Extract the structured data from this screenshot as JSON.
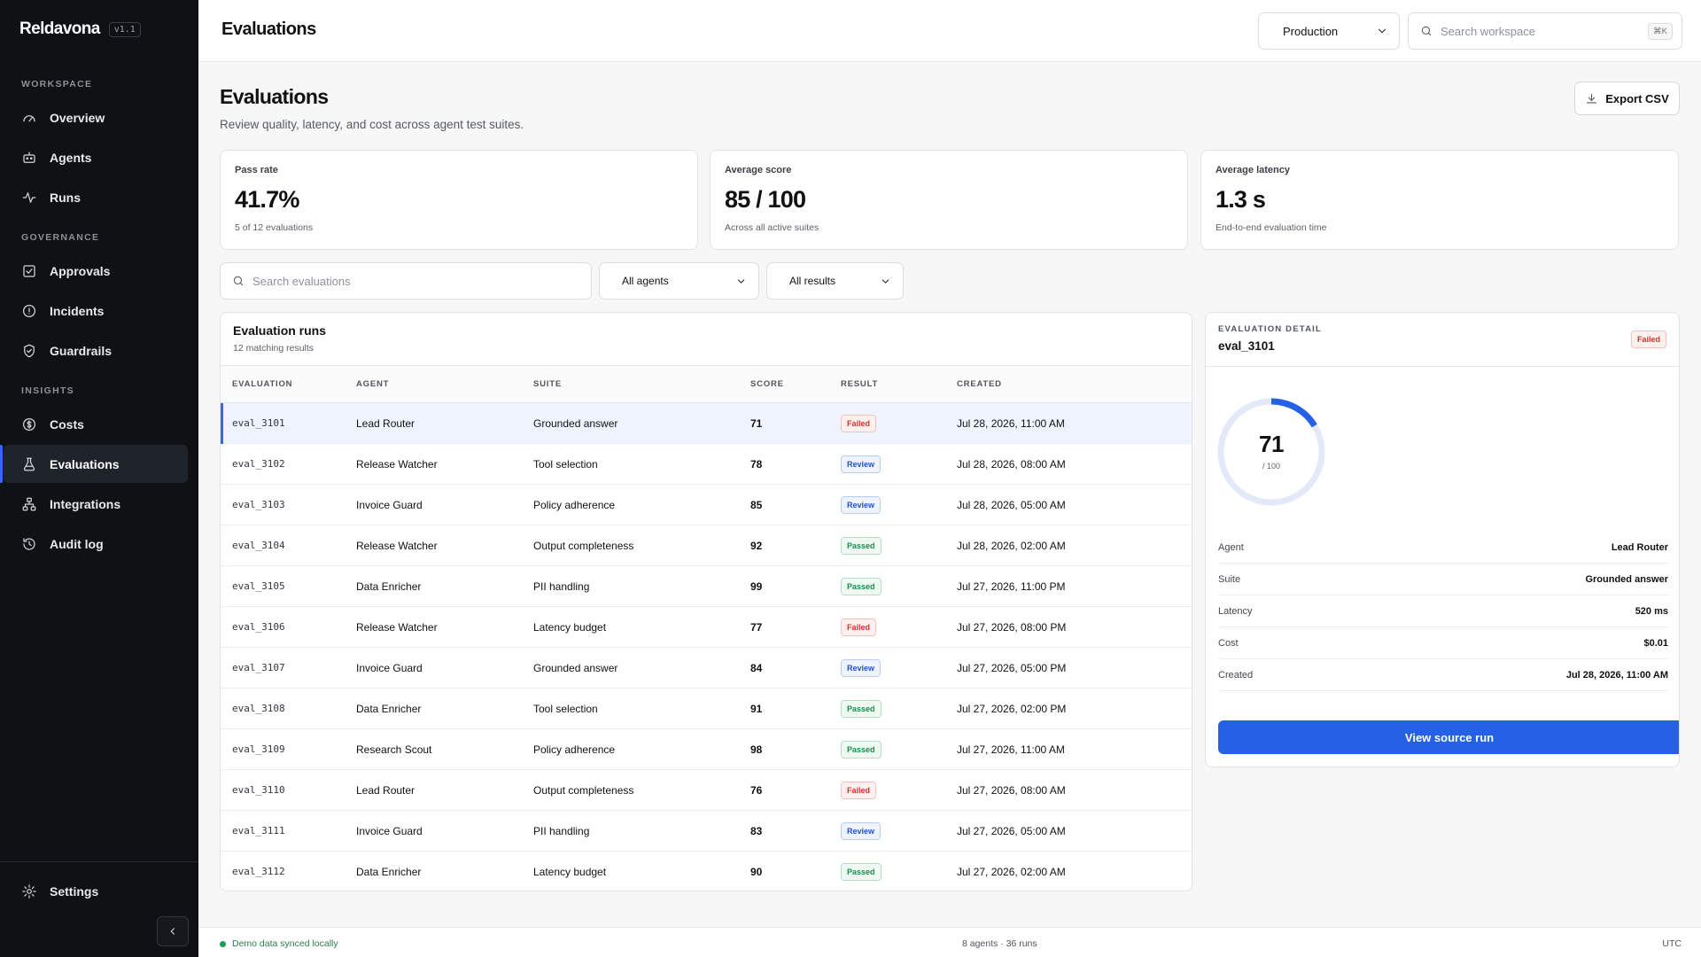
{
  "app": {
    "brand": "Reldavona",
    "version": "v1.1"
  },
  "sidebar": {
    "sections": [
      "WORKSPACE",
      "GOVERNANCE",
      "INSIGHTS"
    ],
    "items": [
      {
        "label": "Overview",
        "icon": "gauge-icon"
      },
      {
        "label": "Agents",
        "icon": "robot-icon"
      },
      {
        "label": "Runs",
        "icon": "activity-icon"
      },
      {
        "label": "Approvals",
        "icon": "check-square-icon"
      },
      {
        "label": "Incidents",
        "icon": "alert-circle-icon"
      },
      {
        "label": "Guardrails",
        "icon": "shield-check-icon"
      },
      {
        "label": "Costs",
        "icon": "dollar-circle-icon"
      },
      {
        "label": "Evaluations",
        "icon": "flask-icon",
        "active": true
      },
      {
        "label": "Integrations",
        "icon": "network-icon"
      },
      {
        "label": "Audit log",
        "icon": "history-icon"
      }
    ],
    "settings": "Settings"
  },
  "topbar": {
    "title": "Evaluations",
    "environment": "Production",
    "search_placeholder": "Search workspace",
    "shortcut": "⌘K"
  },
  "header": {
    "title": "Evaluations",
    "subtitle": "Review quality, latency, and cost across agent test suites.",
    "export_label": "Export CSV"
  },
  "stats": [
    {
      "label": "Pass rate",
      "value": "41.7%",
      "note": "5 of 12 evaluations"
    },
    {
      "label": "Average score",
      "value": "85 / 100",
      "note": "Across all active suites"
    },
    {
      "label": "Average latency",
      "value": "1.3 s",
      "note": "End-to-end evaluation time"
    }
  ],
  "filters": {
    "search_placeholder": "Search evaluations",
    "agent_filter": "All agents",
    "result_filter": "All results"
  },
  "table": {
    "title": "Evaluation runs",
    "subtitle": "12 matching results",
    "columns": [
      "EVALUATION",
      "AGENT",
      "SUITE",
      "SCORE",
      "RESULT",
      "CREATED"
    ],
    "rows": [
      {
        "id": "eval_3101",
        "agent": "Lead Router",
        "suite": "Grounded answer",
        "score": "71",
        "result": "Failed",
        "created": "Jul 28, 2026, 11:00 AM"
      },
      {
        "id": "eval_3102",
        "agent": "Release Watcher",
        "suite": "Tool selection",
        "score": "78",
        "result": "Review",
        "created": "Jul 28, 2026, 08:00 AM"
      },
      {
        "id": "eval_3103",
        "agent": "Invoice Guard",
        "suite": "Policy adherence",
        "score": "85",
        "result": "Review",
        "created": "Jul 28, 2026, 05:00 AM"
      },
      {
        "id": "eval_3104",
        "agent": "Release Watcher",
        "suite": "Output completeness",
        "score": "92",
        "result": "Passed",
        "created": "Jul 28, 2026, 02:00 AM"
      },
      {
        "id": "eval_3105",
        "agent": "Data Enricher",
        "suite": "PII handling",
        "score": "99",
        "result": "Passed",
        "created": "Jul 27, 2026, 11:00 PM"
      },
      {
        "id": "eval_3106",
        "agent": "Release Watcher",
        "suite": "Latency budget",
        "score": "77",
        "result": "Failed",
        "created": "Jul 27, 2026, 08:00 PM"
      },
      {
        "id": "eval_3107",
        "agent": "Invoice Guard",
        "suite": "Grounded answer",
        "score": "84",
        "result": "Review",
        "created": "Jul 27, 2026, 05:00 PM"
      },
      {
        "id": "eval_3108",
        "agent": "Data Enricher",
        "suite": "Tool selection",
        "score": "91",
        "result": "Passed",
        "created": "Jul 27, 2026, 02:00 PM"
      },
      {
        "id": "eval_3109",
        "agent": "Research Scout",
        "suite": "Policy adherence",
        "score": "98",
        "result": "Passed",
        "created": "Jul 27, 2026, 11:00 AM"
      },
      {
        "id": "eval_3110",
        "agent": "Lead Router",
        "suite": "Output completeness",
        "score": "76",
        "result": "Failed",
        "created": "Jul 27, 2026, 08:00 AM"
      },
      {
        "id": "eval_3111",
        "agent": "Invoice Guard",
        "suite": "PII handling",
        "score": "83",
        "result": "Review",
        "created": "Jul 27, 2026, 05:00 AM"
      },
      {
        "id": "eval_3112",
        "agent": "Data Enricher",
        "suite": "Latency budget",
        "score": "90",
        "result": "Passed",
        "created": "Jul 27, 2026, 02:00 AM"
      }
    ]
  },
  "detail": {
    "eyebrow": "EVALUATION DETAIL",
    "id": "eval_3101",
    "status": "Failed",
    "score": "71",
    "score_max": "/ 100",
    "score_fraction": 0.71,
    "fields": [
      {
        "key": "Agent",
        "value": "Lead Router"
      },
      {
        "key": "Suite",
        "value": "Grounded answer"
      },
      {
        "key": "Latency",
        "value": "520 ms"
      },
      {
        "key": "Cost",
        "value": "$0.01"
      },
      {
        "key": "Created",
        "value": "Jul 28, 2026, 11:00 AM"
      }
    ],
    "action": "View source run"
  },
  "footer": {
    "sync": "Demo data synced locally",
    "counts": "8 agents · 36 runs",
    "timezone": "UTC"
  },
  "colors": {
    "accent": "#2461e6",
    "failed": "#d0342c",
    "review": "#2452c4",
    "passed": "#1a8a4c",
    "sync_dot": "#1f9d55"
  }
}
